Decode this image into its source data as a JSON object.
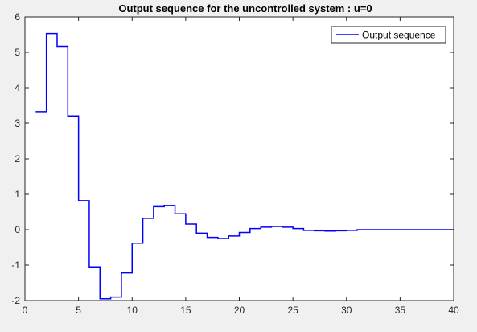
{
  "chart_data": {
    "type": "line",
    "style": "stairs",
    "title": "Output sequence for the uncontrolled system : u=0",
    "xlabel": "",
    "ylabel": "",
    "xlim": [
      0,
      40
    ],
    "ylim": [
      -2,
      6
    ],
    "xticks": [
      0,
      5,
      10,
      15,
      20,
      25,
      30,
      35,
      40
    ],
    "yticks": [
      -2,
      -1,
      0,
      1,
      2,
      3,
      4,
      5,
      6
    ],
    "grid": false,
    "legend": {
      "location": "top-right",
      "entries": [
        "Output sequence"
      ]
    },
    "series": [
      {
        "name": "Output sequence",
        "color": "#0000ff",
        "x": [
          1,
          2,
          3,
          4,
          5,
          6,
          7,
          8,
          9,
          10,
          11,
          12,
          13,
          14,
          15,
          16,
          17,
          18,
          19,
          20,
          21,
          22,
          23,
          24,
          25,
          26,
          27,
          28,
          29,
          30,
          31,
          32,
          33,
          34,
          35,
          36,
          37,
          38,
          39,
          40
        ],
        "y": [
          3.32,
          5.53,
          5.17,
          3.2,
          0.82,
          -1.05,
          -1.95,
          -1.9,
          -1.22,
          -0.38,
          0.32,
          0.65,
          0.68,
          0.45,
          0.16,
          -0.1,
          -0.22,
          -0.25,
          -0.18,
          -0.08,
          0.03,
          0.07,
          0.09,
          0.07,
          0.03,
          -0.02,
          -0.03,
          -0.04,
          -0.03,
          -0.02,
          0.0,
          0.0,
          0.0,
          0.0,
          0.0,
          0.0,
          0.0,
          0.0,
          0.0,
          0.0
        ]
      }
    ]
  }
}
